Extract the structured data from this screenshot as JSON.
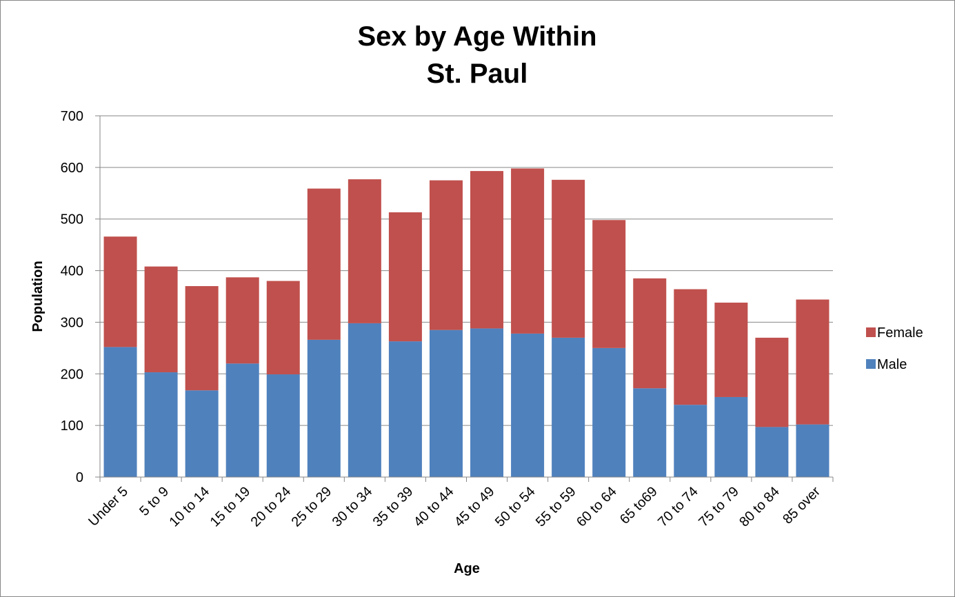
{
  "chart_data": {
    "type": "bar",
    "stacked": true,
    "title_lines": [
      "Sex by Age Within",
      "St. Paul"
    ],
    "xlabel": "Age",
    "ylabel": "Population",
    "ylim": [
      0,
      700
    ],
    "yticks": [
      0,
      100,
      200,
      300,
      400,
      500,
      600,
      700
    ],
    "grid": true,
    "legend_position": "right",
    "categories": [
      "Under 5",
      "5 to 9",
      "10 to 14",
      "15 to 19",
      "20 to 24",
      "25 to 29",
      "30 to 34",
      "35 to 39",
      "40 to 44",
      "45 to 49",
      "50 to 54",
      "55 to 59",
      "60 to 64",
      "65 to69",
      "70 to 74",
      "75 to 79",
      "80 to 84",
      "85 over"
    ],
    "series": [
      {
        "name": "Male",
        "color": "#4f81bd",
        "values": [
          252,
          203,
          168,
          220,
          199,
          266,
          298,
          263,
          285,
          288,
          278,
          270,
          250,
          172,
          140,
          155,
          97,
          102
        ]
      },
      {
        "name": "Female",
        "color": "#c0504d",
        "values": [
          214,
          205,
          202,
          167,
          181,
          293,
          279,
          250,
          290,
          305,
          320,
          306,
          248,
          213,
          224,
          183,
          173,
          242
        ]
      }
    ],
    "legend_order": [
      "Female",
      "Male"
    ]
  }
}
